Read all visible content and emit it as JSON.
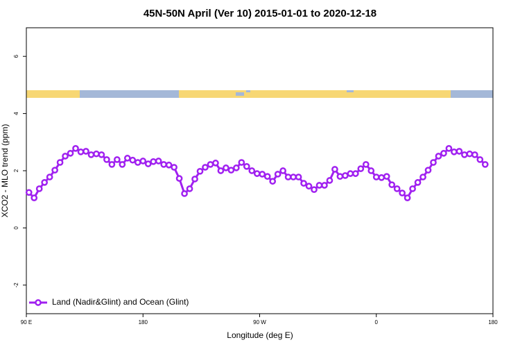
{
  "chart_data": {
    "type": "line",
    "title": "45N-50N April (Ver 10)   2015-01-01 to 2020-12-18",
    "x_label": "Longitude (deg E)",
    "y_label": "XCO2 - MLO trend (ppm)",
    "xlim": [
      90,
      450
    ],
    "xticks": [
      {
        "value": 90,
        "label": "90 E"
      },
      180,
      {
        "value": 270,
        "label": "90 W"
      },
      {
        "value": 360,
        "label": "0"
      },
      {
        "value": 450,
        "label": "180"
      }
    ],
    "ylim": [
      -3,
      7
    ],
    "yticks": [
      -2,
      0,
      2,
      4,
      6
    ],
    "legend": "bottom-left",
    "x": [
      92,
      96,
      100,
      104,
      108,
      112,
      116,
      120,
      124,
      128,
      132,
      136,
      140,
      144,
      148,
      152,
      156,
      160,
      164,
      168,
      172,
      176,
      180,
      184,
      188,
      192,
      196,
      200,
      204,
      208,
      212,
      216,
      220,
      224,
      228,
      232,
      236,
      240,
      244,
      248,
      252,
      256,
      260,
      264,
      268,
      272,
      276,
      280,
      284,
      288,
      292,
      296,
      300,
      304,
      308,
      312,
      316,
      320,
      324,
      328,
      332,
      336,
      340,
      344,
      348,
      352,
      356,
      360,
      364,
      368,
      372,
      376,
      380,
      384,
      388,
      392,
      396,
      400,
      404,
      408,
      412,
      416,
      420,
      424,
      428,
      432,
      436,
      440,
      444
    ],
    "series": [
      {
        "name": "Land (Nadir&Glint) and Ocean (Glint)",
        "color": "#a020f0",
        "values": [
          1.24,
          1.05,
          1.37,
          1.59,
          1.78,
          2.02,
          2.29,
          2.51,
          2.61,
          2.78,
          2.66,
          2.68,
          2.56,
          2.59,
          2.56,
          2.39,
          2.22,
          2.39,
          2.22,
          2.44,
          2.37,
          2.29,
          2.34,
          2.24,
          2.32,
          2.34,
          2.22,
          2.2,
          2.12,
          1.73,
          1.2,
          1.37,
          1.71,
          1.98,
          2.12,
          2.22,
          2.27,
          2.0,
          2.1,
          2.02,
          2.1,
          2.29,
          2.15,
          2.0,
          1.9,
          1.88,
          1.8,
          1.63,
          1.88,
          2.0,
          1.78,
          1.78,
          1.78,
          1.56,
          1.46,
          1.34,
          1.49,
          1.49,
          1.66,
          2.05,
          1.8,
          1.83,
          1.9,
          1.9,
          2.07,
          2.22,
          2.0,
          1.78,
          1.76,
          1.8,
          1.51,
          1.37,
          1.22,
          1.05,
          1.37,
          1.59,
          1.78,
          2.02,
          2.29,
          2.51,
          2.61,
          2.78,
          2.66,
          2.68,
          2.56,
          2.59,
          2.56,
          2.39,
          2.22
        ]
      }
    ]
  }
}
